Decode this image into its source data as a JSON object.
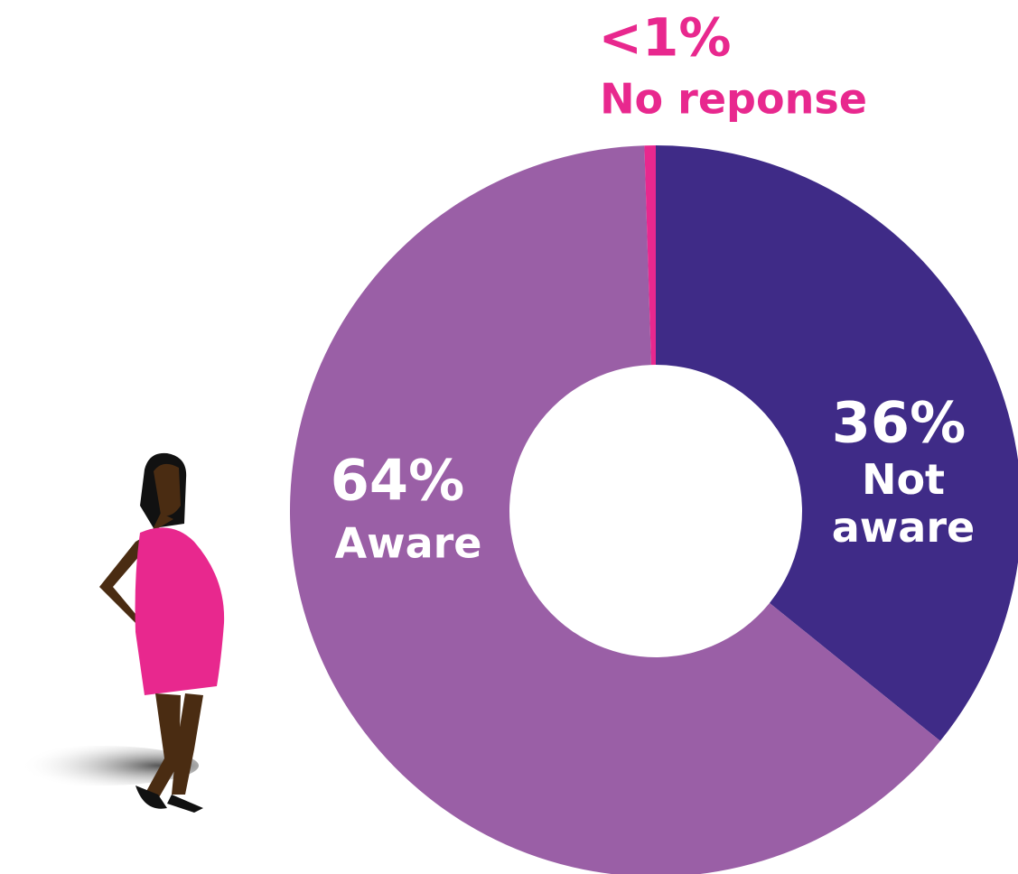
{
  "chart_data": {
    "type": "pie",
    "categories": [
      "Not aware",
      "Aware",
      "No reponse"
    ],
    "values": [
      36,
      64,
      0.5
    ],
    "value_labels": [
      "36%",
      "64%",
      "<1%"
    ],
    "colors": [
      "#3f2b87",
      "#9a5fa6",
      "#e8288e"
    ],
    "donut": true
  }
}
